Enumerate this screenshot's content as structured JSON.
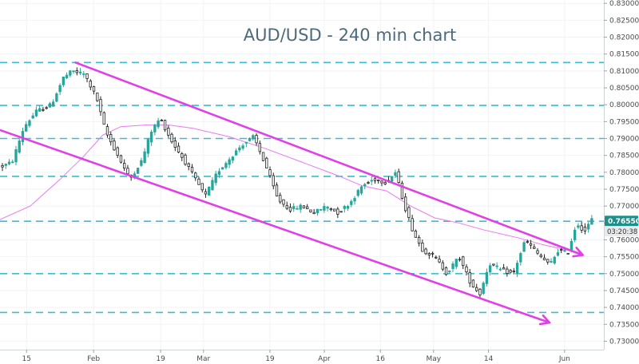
{
  "chart_data": {
    "type": "candlestick",
    "title": "AUD/USD - 240 min chart",
    "ylim": [
      0.7275,
      0.831
    ],
    "y_ticks": [
      0.73,
      0.735,
      0.74,
      0.745,
      0.75,
      0.755,
      0.76,
      0.765,
      0.77,
      0.775,
      0.78,
      0.785,
      0.79,
      0.795,
      0.8,
      0.805,
      0.81,
      0.815,
      0.82,
      0.825,
      0.83
    ],
    "y_tick_labels": [
      "0.73000",
      "0.73500",
      "0.74000",
      "0.74500",
      "0.75000",
      "0.75500",
      "0.76000",
      "0.76500",
      "0.77000",
      "0.77500",
      "0.78000",
      "0.78500",
      "0.79000",
      "0.79500",
      "0.80000",
      "0.80500",
      "0.81000",
      "0.81500",
      "0.82000",
      "0.82500",
      "0.83000"
    ],
    "x_labels": [
      {
        "label": "15",
        "pos": 0.044
      },
      {
        "label": "Feb",
        "pos": 0.155
      },
      {
        "label": "19",
        "pos": 0.266
      },
      {
        "label": "Mar",
        "pos": 0.337
      },
      {
        "label": "19",
        "pos": 0.447
      },
      {
        "label": "Apr",
        "pos": 0.537
      },
      {
        "label": "16",
        "pos": 0.63
      },
      {
        "label": "May",
        "pos": 0.718
      },
      {
        "label": "14",
        "pos": 0.809
      },
      {
        "label": "Jun",
        "pos": 0.935
      }
    ],
    "horizontal_levels": [
      0.8125,
      0.7998,
      0.79,
      0.7788,
      0.7655,
      0.75,
      0.7385
    ],
    "channel_upper": [
      [
        0.125,
        0.8125
      ],
      [
        0.965,
        0.7555
      ]
    ],
    "channel_lower": [
      [
        0.0,
        0.7925
      ],
      [
        0.91,
        0.7355
      ]
    ],
    "channel_arrows": [
      "upper-end",
      "lower-end"
    ],
    "ma_line": [
      [
        0.0,
        0.766
      ],
      [
        0.05,
        0.77
      ],
      [
        0.1,
        0.778
      ],
      [
        0.14,
        0.785
      ],
      [
        0.17,
        0.791
      ],
      [
        0.2,
        0.7935
      ],
      [
        0.24,
        0.794
      ],
      [
        0.28,
        0.794
      ],
      [
        0.32,
        0.793
      ],
      [
        0.38,
        0.7905
      ],
      [
        0.44,
        0.787
      ],
      [
        0.5,
        0.783
      ],
      [
        0.56,
        0.779
      ],
      [
        0.6,
        0.776
      ],
      [
        0.64,
        0.7745
      ],
      [
        0.68,
        0.77
      ],
      [
        0.72,
        0.7665
      ],
      [
        0.76,
        0.765
      ],
      [
        0.8,
        0.763
      ],
      [
        0.86,
        0.7605
      ],
      [
        0.9,
        0.7585
      ],
      [
        0.965,
        0.756
      ]
    ],
    "series_path": [
      [
        0.0,
        0.7815
      ],
      [
        0.02,
        0.783
      ],
      [
        0.04,
        0.7935
      ],
      [
        0.06,
        0.798
      ],
      [
        0.085,
        0.8
      ],
      [
        0.105,
        0.808
      ],
      [
        0.12,
        0.81
      ],
      [
        0.14,
        0.809
      ],
      [
        0.16,
        0.802
      ],
      [
        0.175,
        0.792
      ],
      [
        0.195,
        0.785
      ],
      [
        0.215,
        0.778
      ],
      [
        0.235,
        0.7835
      ],
      [
        0.25,
        0.792
      ],
      [
        0.265,
        0.796
      ],
      [
        0.285,
        0.789
      ],
      [
        0.305,
        0.7835
      ],
      [
        0.32,
        0.779
      ],
      [
        0.34,
        0.773
      ],
      [
        0.36,
        0.78
      ],
      [
        0.38,
        0.784
      ],
      [
        0.4,
        0.788
      ],
      [
        0.42,
        0.7905
      ],
      [
        0.44,
        0.782
      ],
      [
        0.46,
        0.772
      ],
      [
        0.48,
        0.769
      ],
      [
        0.5,
        0.77
      ],
      [
        0.52,
        0.768
      ],
      [
        0.54,
        0.77
      ],
      [
        0.56,
        0.768
      ],
      [
        0.58,
        0.771
      ],
      [
        0.6,
        0.776
      ],
      [
        0.62,
        0.778
      ],
      [
        0.64,
        0.777
      ],
      [
        0.655,
        0.78
      ],
      [
        0.67,
        0.77
      ],
      [
        0.685,
        0.762
      ],
      [
        0.7,
        0.757
      ],
      [
        0.72,
        0.755
      ],
      [
        0.74,
        0.75
      ],
      [
        0.76,
        0.755
      ],
      [
        0.78,
        0.747
      ],
      [
        0.795,
        0.744
      ],
      [
        0.81,
        0.753
      ],
      [
        0.83,
        0.751
      ],
      [
        0.85,
        0.75
      ],
      [
        0.87,
        0.76
      ],
      [
        0.89,
        0.756
      ],
      [
        0.91,
        0.7525
      ],
      [
        0.925,
        0.757
      ],
      [
        0.94,
        0.756
      ],
      [
        0.955,
        0.765
      ],
      [
        0.968,
        0.7625
      ],
      [
        0.98,
        0.766
      ]
    ],
    "last_price": 0.7655,
    "last_price_label": "0.76550",
    "countdown": "03:20:38",
    "colors": {
      "up": "#26a69a",
      "down": "#222222",
      "channel": "#e040e6",
      "ma": "#e879f0",
      "levels": "#3cbcd0",
      "badge": "#1e8f8a"
    }
  }
}
